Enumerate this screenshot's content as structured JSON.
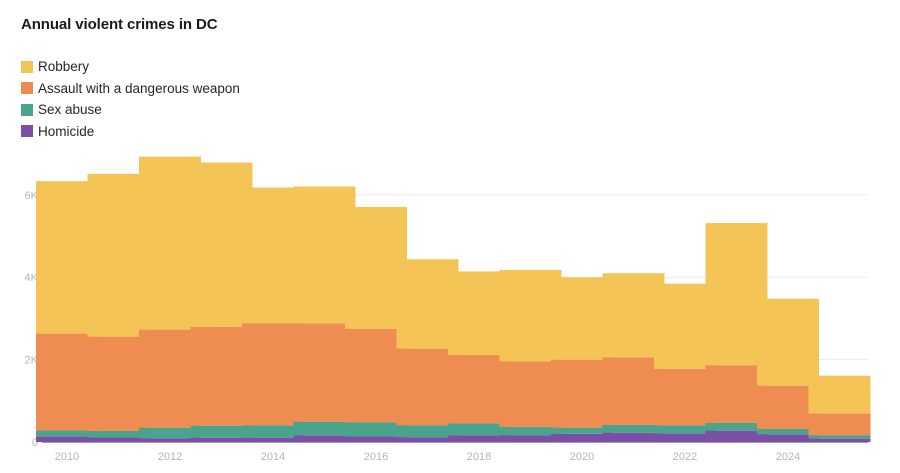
{
  "chart_data": {
    "type": "bar",
    "stacked": true,
    "title": "Annual violent crimes in DC",
    "xlabel": "",
    "ylabel": "",
    "categories": [
      "2010",
      "2011",
      "2012",
      "2013",
      "2014",
      "2015",
      "2016",
      "2017",
      "2018",
      "2019",
      "2020",
      "2021",
      "2022",
      "2023",
      "2024",
      "2025"
    ],
    "x_tick_labels": [
      "2010",
      "2012",
      "2014",
      "2016",
      "2018",
      "2020",
      "2022",
      "2024"
    ],
    "y_tick_labels": [
      "0",
      "2K",
      "4K",
      "6K"
    ],
    "y_ticks": [
      0,
      2000,
      4000,
      6000
    ],
    "ylim": [
      0,
      7000
    ],
    "grid": true,
    "legend_position": "top-left",
    "series": [
      {
        "name": "Homicide",
        "color": "#7b4fa6",
        "values": [
          132,
          108,
          88,
          104,
          105,
          162,
          135,
          116,
          160,
          166,
          198,
          226,
          203,
          274,
          187,
          80
        ]
      },
      {
        "name": "Sex abuse",
        "color": "#4aa38d",
        "values": [
          150,
          160,
          260,
          290,
          300,
          330,
          340,
          290,
          290,
          200,
          150,
          190,
          200,
          190,
          130,
          80
        ]
      },
      {
        "name": "Assault with a dangerous weapon",
        "color": "#ef8c52",
        "values": [
          2350,
          2290,
          2380,
          2400,
          2480,
          2390,
          2270,
          1860,
          1660,
          1590,
          1650,
          1640,
          1370,
          1400,
          1050,
          530
        ]
      },
      {
        "name": "Robbery",
        "color": "#f5c456",
        "values": [
          3700,
          3950,
          4200,
          3990,
          3290,
          3320,
          2960,
          2170,
          2030,
          2220,
          2000,
          2040,
          2070,
          3450,
          2110,
          920
        ]
      }
    ]
  }
}
